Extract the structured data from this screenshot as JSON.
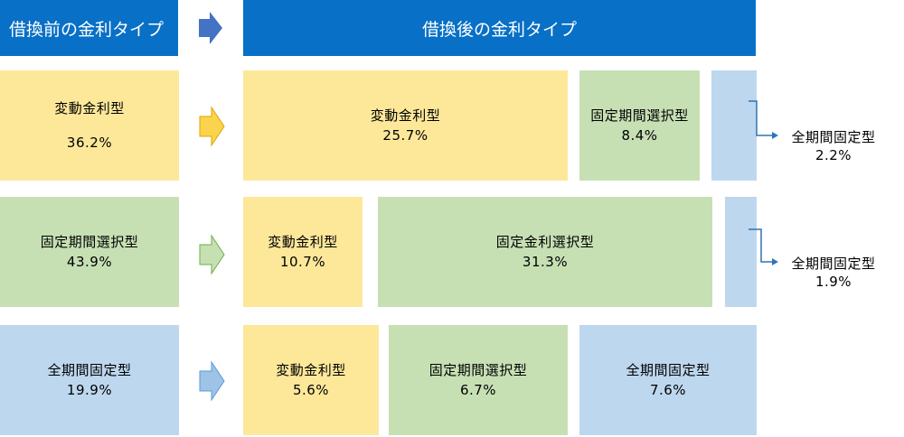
{
  "header": {
    "before": "借換前の金利タイプ",
    "after": "借換後の金利タイプ"
  },
  "rows": [
    {
      "source": {
        "type": "変動金利型",
        "pct": "36.2%",
        "color": "#fde89a"
      },
      "arrow_color": "#fcd34d",
      "targets": [
        {
          "type": "変動金利型",
          "pct": "25.7%",
          "color": "#fde89a"
        },
        {
          "type": "固定期間選択型",
          "pct": "8.4%",
          "color": "#c6e0b4"
        },
        {
          "type": "",
          "pct": "",
          "color": "#bdd7ee"
        }
      ],
      "side": {
        "type": "全期間固定型",
        "pct": "2.2%"
      }
    },
    {
      "source": {
        "type": "固定期間選択型",
        "pct": "43.9%",
        "color": "#c6e0b4"
      },
      "arrow_color": "#c6e0b4",
      "targets": [
        {
          "type": "変動金利型",
          "pct": "10.7%",
          "color": "#fde89a"
        },
        {
          "type": "固定金利選択型",
          "pct": "31.3%",
          "color": "#c6e0b4"
        },
        {
          "type": "",
          "pct": "",
          "color": "#bdd7ee"
        }
      ],
      "side": {
        "type": "全期間固定型",
        "pct": "1.9%"
      }
    },
    {
      "source": {
        "type": "全期間固定型",
        "pct": "19.9%",
        "color": "#bdd7ee"
      },
      "arrow_color": "#9dc3e6",
      "targets": [
        {
          "type": "変動金利型",
          "pct": "5.6%",
          "color": "#fde89a"
        },
        {
          "type": "固定期間選択型",
          "pct": "6.7%",
          "color": "#c6e0b4"
        },
        {
          "type": "全期間固定型",
          "pct": "7.6%",
          "color": "#bdd7ee"
        }
      ]
    }
  ]
}
